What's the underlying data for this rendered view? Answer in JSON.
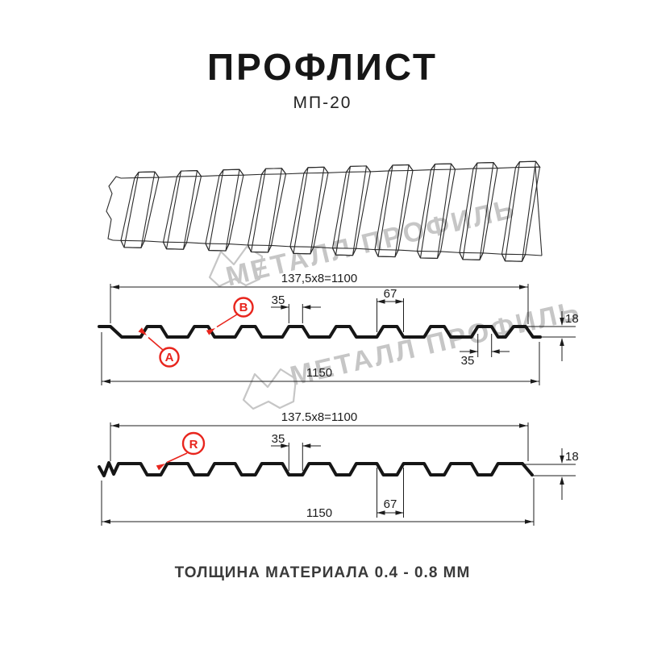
{
  "header": {
    "title": "ПРОФЛИСТ",
    "subtitle": "МП-20"
  },
  "watermark": {
    "text": "МЕТАЛЛ ПРОФИЛЬ",
    "color": "#c6c6c6"
  },
  "section1": {
    "dim_working_width": "137,5x8=1100",
    "dim_rib_top_width": "35",
    "dim_rib_base_width": "67",
    "dim_profile_height": "18",
    "dim_rib_top_width_below": "35",
    "dim_total_width": "1150",
    "label_a": "A",
    "label_b": "B"
  },
  "section2": {
    "dim_working_width": "137.5x8=1100",
    "dim_groove_bottom_width": "35",
    "dim_groove_opening_width": "67",
    "dim_profile_height": "18",
    "dim_total_width": "1150",
    "label_r": "R"
  },
  "footer": {
    "caption": "ТОЛЩИНА МАТЕРИАЛА 0.4 - 0.8 ММ"
  },
  "colors": {
    "accent_red": "#e8251d",
    "line": "#1c1c1c",
    "watermark_gray": "#c6c6c6"
  }
}
